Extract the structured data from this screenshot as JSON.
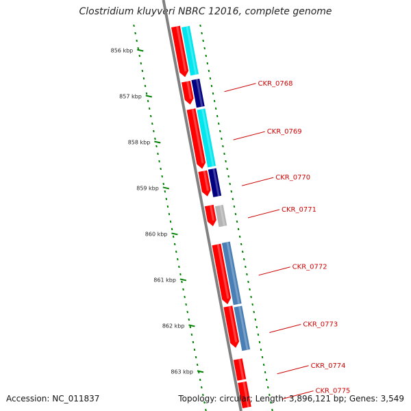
{
  "title": "Clostridium kluyveri NBRC 12016, complete genome",
  "footer": {
    "accession_label": "Accession:",
    "accession": "NC_011837",
    "topology": "Topology: circular; Length: 3,896,121 bp; Genes: 3,549"
  },
  "axis": {
    "start_kbp": 855.5,
    "end_kbp": 863.8,
    "ticks": [
      {
        "kbp": 856,
        "label": "856 kbp"
      },
      {
        "kbp": 857,
        "label": "857 kbp"
      },
      {
        "kbp": 858,
        "label": "858 kbp"
      },
      {
        "kbp": 859,
        "label": "859 kbp"
      },
      {
        "kbp": 860,
        "label": "860 kbp"
      },
      {
        "kbp": 861,
        "label": "861 kbp"
      },
      {
        "kbp": 862,
        "label": "862 kbp"
      },
      {
        "kbp": 863,
        "label": "863 kbp"
      }
    ]
  },
  "genes": [
    {
      "start_kbp": 855.5,
      "end_kbp": 856.6,
      "track": "red",
      "color": "#ff0000",
      "arrow": true
    },
    {
      "start_kbp": 856.7,
      "end_kbp": 857.2,
      "track": "red",
      "color": "#ff0000",
      "arrow": true
    },
    {
      "start_kbp": 857.3,
      "end_kbp": 858.6,
      "track": "red",
      "color": "#ff0000",
      "arrow": true
    },
    {
      "start_kbp": 858.65,
      "end_kbp": 859.2,
      "track": "red",
      "color": "#ff0000",
      "arrow": true
    },
    {
      "start_kbp": 859.4,
      "end_kbp": 859.85,
      "track": "red",
      "color": "#ff0000",
      "arrow": true
    },
    {
      "start_kbp": 860.25,
      "end_kbp": 861.55,
      "track": "red",
      "color": "#ff0000",
      "arrow": true
    },
    {
      "start_kbp": 861.6,
      "end_kbp": 862.5,
      "track": "red",
      "color": "#ff0000",
      "arrow": true
    },
    {
      "start_kbp": 862.75,
      "end_kbp": 863.2,
      "track": "red",
      "color": "#ff0000",
      "arrow": false
    },
    {
      "start_kbp": 863.25,
      "end_kbp": 863.8,
      "track": "red",
      "color": "#ff0000",
      "arrow": false
    },
    {
      "start_kbp": 855.5,
      "end_kbp": 856.55,
      "track": "blue",
      "color": "#00e5ee"
    },
    {
      "start_kbp": 856.65,
      "end_kbp": 857.25,
      "track": "blue",
      "color": "#000080"
    },
    {
      "start_kbp": 857.3,
      "end_kbp": 858.55,
      "track": "blue",
      "color": "#00e5ee"
    },
    {
      "start_kbp": 858.6,
      "end_kbp": 859.2,
      "track": "blue",
      "color": "#000080"
    },
    {
      "start_kbp": 859.4,
      "end_kbp": 859.85,
      "track": "blue",
      "color": "#b4b4b4"
    },
    {
      "start_kbp": 860.2,
      "end_kbp": 861.55,
      "track": "blue",
      "color": "#4a7fb5"
    },
    {
      "start_kbp": 861.6,
      "end_kbp": 862.55,
      "track": "blue",
      "color": "#4a7fb5"
    }
  ],
  "gene_labels": [
    {
      "name": "CKR_0768",
      "kbp": 856.9
    },
    {
      "name": "CKR_0769",
      "kbp": 857.95
    },
    {
      "name": "CKR_0770",
      "kbp": 858.95
    },
    {
      "name": "CKR_0771",
      "kbp": 859.65
    },
    {
      "name": "CKR_0772",
      "kbp": 860.9
    },
    {
      "name": "CKR_0773",
      "kbp": 862.15
    },
    {
      "name": "CKR_0774",
      "kbp": 863.05
    },
    {
      "name": "CKR_0775",
      "kbp": 863.6
    }
  ],
  "colors": {
    "backbone": "#808080",
    "ticks": "#008000",
    "label": "#cc0000"
  }
}
